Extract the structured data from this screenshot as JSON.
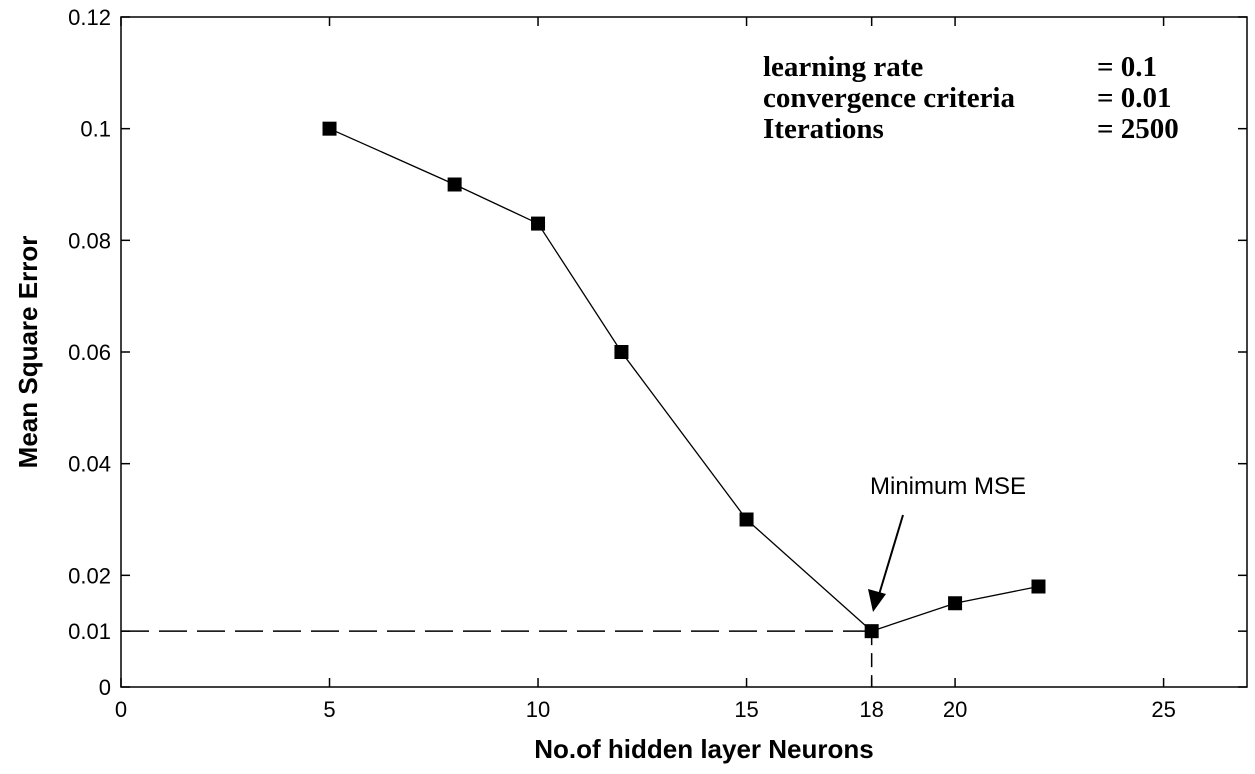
{
  "chart_data": {
    "type": "line",
    "title": "",
    "xlabel": "No.of hidden layer Neurons",
    "ylabel": "Mean Square Error",
    "xlim": [
      0,
      27
    ],
    "ylim": [
      0,
      0.12
    ],
    "x_ticks": [
      0,
      5,
      10,
      15,
      18,
      20,
      25
    ],
    "x_tick_labels": [
      "0",
      "5",
      "10",
      "15",
      "18",
      "20",
      "25"
    ],
    "y_ticks": [
      0,
      0.01,
      0.02,
      0.04,
      0.06,
      0.08,
      0.1,
      0.12
    ],
    "y_tick_labels": [
      "0",
      "0.01",
      "0.02",
      "0.04",
      "0.06",
      "0.08",
      "0.1",
      "0.12"
    ],
    "grid": false,
    "series": [
      {
        "name": "MSE",
        "marker": "square",
        "color": "#000000",
        "x": [
          5,
          8,
          10,
          12,
          15,
          18,
          20,
          22
        ],
        "y": [
          0.1,
          0.09,
          0.083,
          0.06,
          0.03,
          0.01,
          0.015,
          0.018
        ]
      }
    ],
    "reference_lines": {
      "horizontal_y": 0.01,
      "vertical_x": 18,
      "style": "dashed"
    },
    "parameters": [
      {
        "label": "learning rate",
        "value": "= 0.1"
      },
      {
        "label": "convergence criteria",
        "value": "= 0.01"
      },
      {
        "label": "Iterations",
        "value": "= 2500"
      }
    ],
    "annotation": {
      "text": "Minimum MSE",
      "target_x": 18,
      "target_y": 0.01
    }
  }
}
